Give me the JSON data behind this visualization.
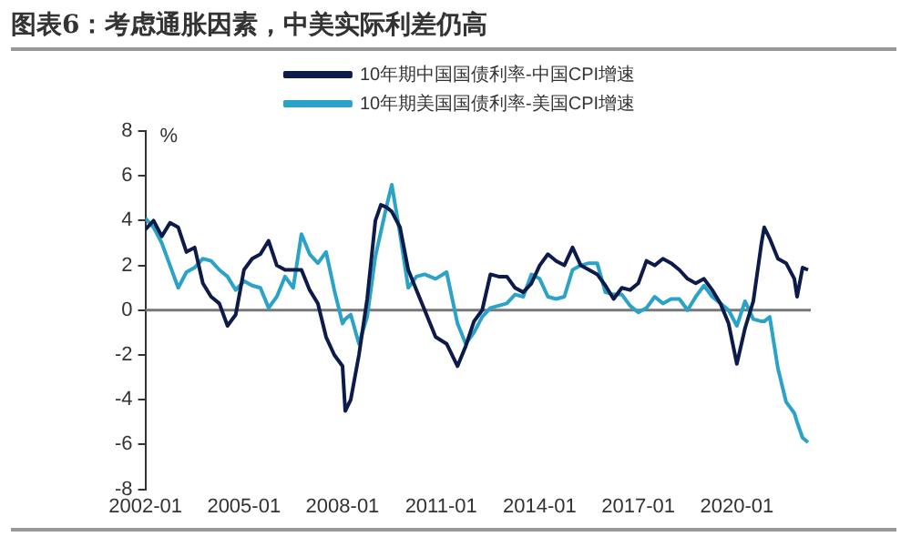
{
  "chart_data": {
    "type": "line",
    "title": "图表6：考虑通胀因素，中美实际利差仍高",
    "ylabel": "%",
    "x": [
      "2002-01",
      "2002-04",
      "2002-07",
      "2002-10",
      "2003-01",
      "2003-04",
      "2003-07",
      "2003-10",
      "2004-01",
      "2004-04",
      "2004-07",
      "2004-10",
      "2005-01",
      "2005-04",
      "2005-07",
      "2005-10",
      "2006-01",
      "2006-04",
      "2006-07",
      "2006-10",
      "2007-01",
      "2007-04",
      "2007-07",
      "2007-10",
      "2008-01",
      "2008-02",
      "2008-04",
      "2008-07",
      "2008-10",
      "2009-01",
      "2009-03",
      "2009-05",
      "2009-07",
      "2009-10",
      "2010-01",
      "2010-04",
      "2010-07",
      "2010-11",
      "2011-03",
      "2011-07",
      "2011-10",
      "2012-01",
      "2012-04",
      "2012-07",
      "2012-10",
      "2013-01",
      "2013-04",
      "2013-07",
      "2013-10",
      "2014-01",
      "2014-04",
      "2014-07",
      "2014-10",
      "2015-01",
      "2015-04",
      "2015-07",
      "2015-10",
      "2016-01",
      "2016-04",
      "2016-07",
      "2016-10",
      "2017-01",
      "2017-04",
      "2017-07",
      "2017-10",
      "2018-01",
      "2018-04",
      "2018-07",
      "2018-10",
      "2019-01",
      "2019-04",
      "2019-07",
      "2019-10",
      "2020-01",
      "2020-04",
      "2020-07",
      "2020-10",
      "2020-11",
      "2021-01",
      "2021-04",
      "2021-07",
      "2021-10",
      "2021-11",
      "2022-01",
      "2022-03"
    ],
    "series": [
      {
        "name": "10年期中国国债利率-中国CPI增速",
        "color": "#0d1b4a",
        "values": [
          3.6,
          4.0,
          3.3,
          3.9,
          3.7,
          2.6,
          2.8,
          1.2,
          0.6,
          0.3,
          -0.7,
          -0.2,
          1.8,
          2.3,
          2.5,
          3.1,
          2.0,
          1.8,
          1.8,
          1.8,
          0.9,
          0.3,
          -1.2,
          -2.0,
          -2.5,
          -4.5,
          -4.0,
          -2.0,
          0.5,
          4.0,
          4.7,
          4.6,
          4.4,
          3.7,
          1.8,
          0.9,
          0.0,
          -1.2,
          -1.5,
          -2.5,
          -1.6,
          -0.5,
          0.0,
          1.6,
          1.5,
          1.5,
          1.0,
          0.8,
          1.2,
          2.0,
          2.5,
          2.2,
          2.0,
          2.8,
          2.0,
          1.8,
          1.6,
          1.1,
          0.5,
          1.0,
          0.9,
          1.2,
          2.2,
          2.0,
          2.3,
          2.1,
          1.8,
          1.4,
          1.2,
          1.4,
          0.9,
          0.3,
          -0.6,
          -2.4,
          -0.8,
          0.4,
          3.0,
          3.7,
          3.2,
          2.3,
          2.1,
          1.4,
          0.6,
          1.9,
          1.8
        ]
      },
      {
        "name": "10年期美国国债利率-美国CPI增速",
        "color": "#2ba3c8",
        "values": [
          4.1,
          3.7,
          3.0,
          2.0,
          1.0,
          1.7,
          1.9,
          2.3,
          2.2,
          1.8,
          1.5,
          0.9,
          1.3,
          1.1,
          1.0,
          0.1,
          0.6,
          1.5,
          1.0,
          3.4,
          2.5,
          2.1,
          2.6,
          0.9,
          -0.6,
          -0.4,
          -0.2,
          -1.5,
          -0.3,
          2.4,
          3.5,
          4.6,
          5.6,
          3.4,
          1.0,
          1.5,
          1.6,
          1.4,
          1.7,
          -0.6,
          -1.5,
          -1.0,
          -0.3,
          0.1,
          0.2,
          0.3,
          0.7,
          0.6,
          1.6,
          1.4,
          0.6,
          0.5,
          0.6,
          1.8,
          2.0,
          2.1,
          2.1,
          0.8,
          0.7,
          0.7,
          0.2,
          -0.1,
          0.1,
          0.6,
          0.3,
          0.5,
          0.5,
          0.0,
          0.6,
          1.1,
          0.6,
          0.3,
          0.0,
          -0.7,
          0.4,
          -0.4,
          -0.5,
          -0.5,
          -0.3,
          -2.6,
          -4.1,
          -4.6,
          -5.0,
          -5.7,
          -5.9
        ]
      }
    ],
    "xlim": [
      "2002-01",
      "2022-04"
    ],
    "xticks": [
      {
        "value": "2002-01",
        "label": "2002-01"
      },
      {
        "value": "2005-01",
        "label": "2005-01"
      },
      {
        "value": "2008-01",
        "label": "2008-01"
      },
      {
        "value": "2011-01",
        "label": "2011-01"
      },
      {
        "value": "2014-01",
        "label": "2014-01"
      },
      {
        "value": "2017-01",
        "label": "2017-01"
      },
      {
        "value": "2020-01",
        "label": "2020-01"
      }
    ],
    "ylim": [
      -8,
      8
    ],
    "yticks": [
      -8,
      -6,
      -4,
      -2,
      0,
      2,
      4,
      6,
      8
    ],
    "ref_lines": [
      {
        "axis": "y",
        "value": 0,
        "color": "#777777"
      }
    ],
    "grid": false,
    "legend": "top",
    "marker": "none",
    "line_style": "solid"
  }
}
